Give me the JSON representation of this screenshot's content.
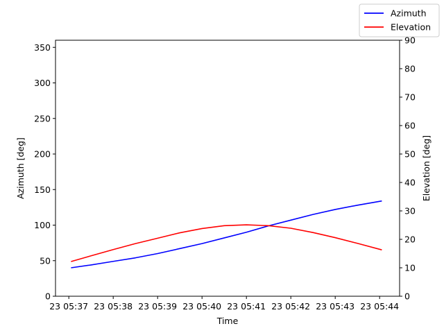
{
  "chart_data": {
    "type": "line",
    "xlabel": "Time",
    "x_ticks": [
      "23 05:37",
      "23 05:38",
      "23 05:39",
      "23 05:40",
      "23 05:41",
      "23 05:42",
      "23 05:43",
      "23 05:44"
    ],
    "x_minutes_range": [
      36.7,
      44.45
    ],
    "left_axis": {
      "label": "Azimuth [deg]",
      "ylim": [
        0,
        360
      ],
      "ticks": [
        0,
        50,
        100,
        150,
        200,
        250,
        300,
        350
      ]
    },
    "right_axis": {
      "label": "Elevation [deg]",
      "ylim": [
        0,
        90
      ],
      "ticks": [
        0,
        10,
        20,
        30,
        40,
        50,
        60,
        70,
        80,
        90
      ]
    },
    "series": [
      {
        "name": "Azimuth",
        "axis": "left",
        "color": "#0000ff",
        "x_minutes": [
          37.05,
          37.5,
          38.0,
          38.5,
          39.0,
          39.5,
          40.0,
          40.5,
          41.0,
          41.5,
          42.0,
          42.5,
          43.0,
          43.5,
          44.05
        ],
        "values": [
          40,
          44,
          49,
          54,
          60,
          67,
          74,
          82,
          90,
          99,
          107,
          115,
          122,
          128,
          134
        ]
      },
      {
        "name": "Elevation",
        "axis": "right",
        "color": "#ff0000",
        "x_minutes": [
          37.05,
          37.5,
          38.0,
          38.5,
          39.0,
          39.5,
          40.0,
          40.5,
          41.0,
          41.5,
          42.0,
          42.5,
          43.0,
          43.5,
          44.05
        ],
        "values": [
          12.2,
          14.2,
          16.4,
          18.5,
          20.4,
          22.3,
          23.8,
          24.8,
          25.1,
          24.8,
          23.9,
          22.4,
          20.6,
          18.6,
          16.3
        ]
      }
    ],
    "legend": {
      "placement": "top-right"
    }
  }
}
